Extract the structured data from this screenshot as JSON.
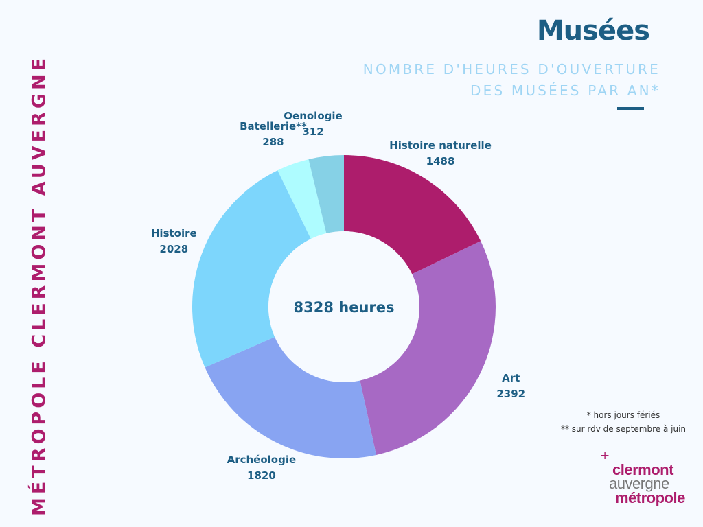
{
  "side_title": "MÉTROPOLE CLERMONT AUVERGNE",
  "subtitle": {
    "line1": "NOMBRE D'HEURES D'OUVERTURE",
    "line2": "DES MUSÉES PAR AN*"
  },
  "chart_data": {
    "type": "pie",
    "title": "Musées",
    "center_label": "8328 heures",
    "categories": [
      "Histoire naturelle",
      "Art",
      "Archéologie",
      "Histoire",
      "Batellerie**",
      "Oenologie"
    ],
    "values": [
      1488,
      2392,
      1820,
      2028,
      288,
      312
    ],
    "colors": [
      "#ad1d6c",
      "#a769c4",
      "#88a4f2",
      "#7dd6fc",
      "#aefcff",
      "#86d1e6"
    ],
    "donut": true
  },
  "notes": {
    "line1": "* hors jours fériés",
    "line2": "** sur rdv de septembre à juin"
  },
  "logo": {
    "plus": "+",
    "word1": "clermont",
    "word2": "auvergne",
    "word3": "métropole"
  },
  "colors": {
    "primary": "#1d5e84",
    "accent": "#ad1d6c",
    "subtitle": "#9fd5f4",
    "background": "#f6faff"
  }
}
